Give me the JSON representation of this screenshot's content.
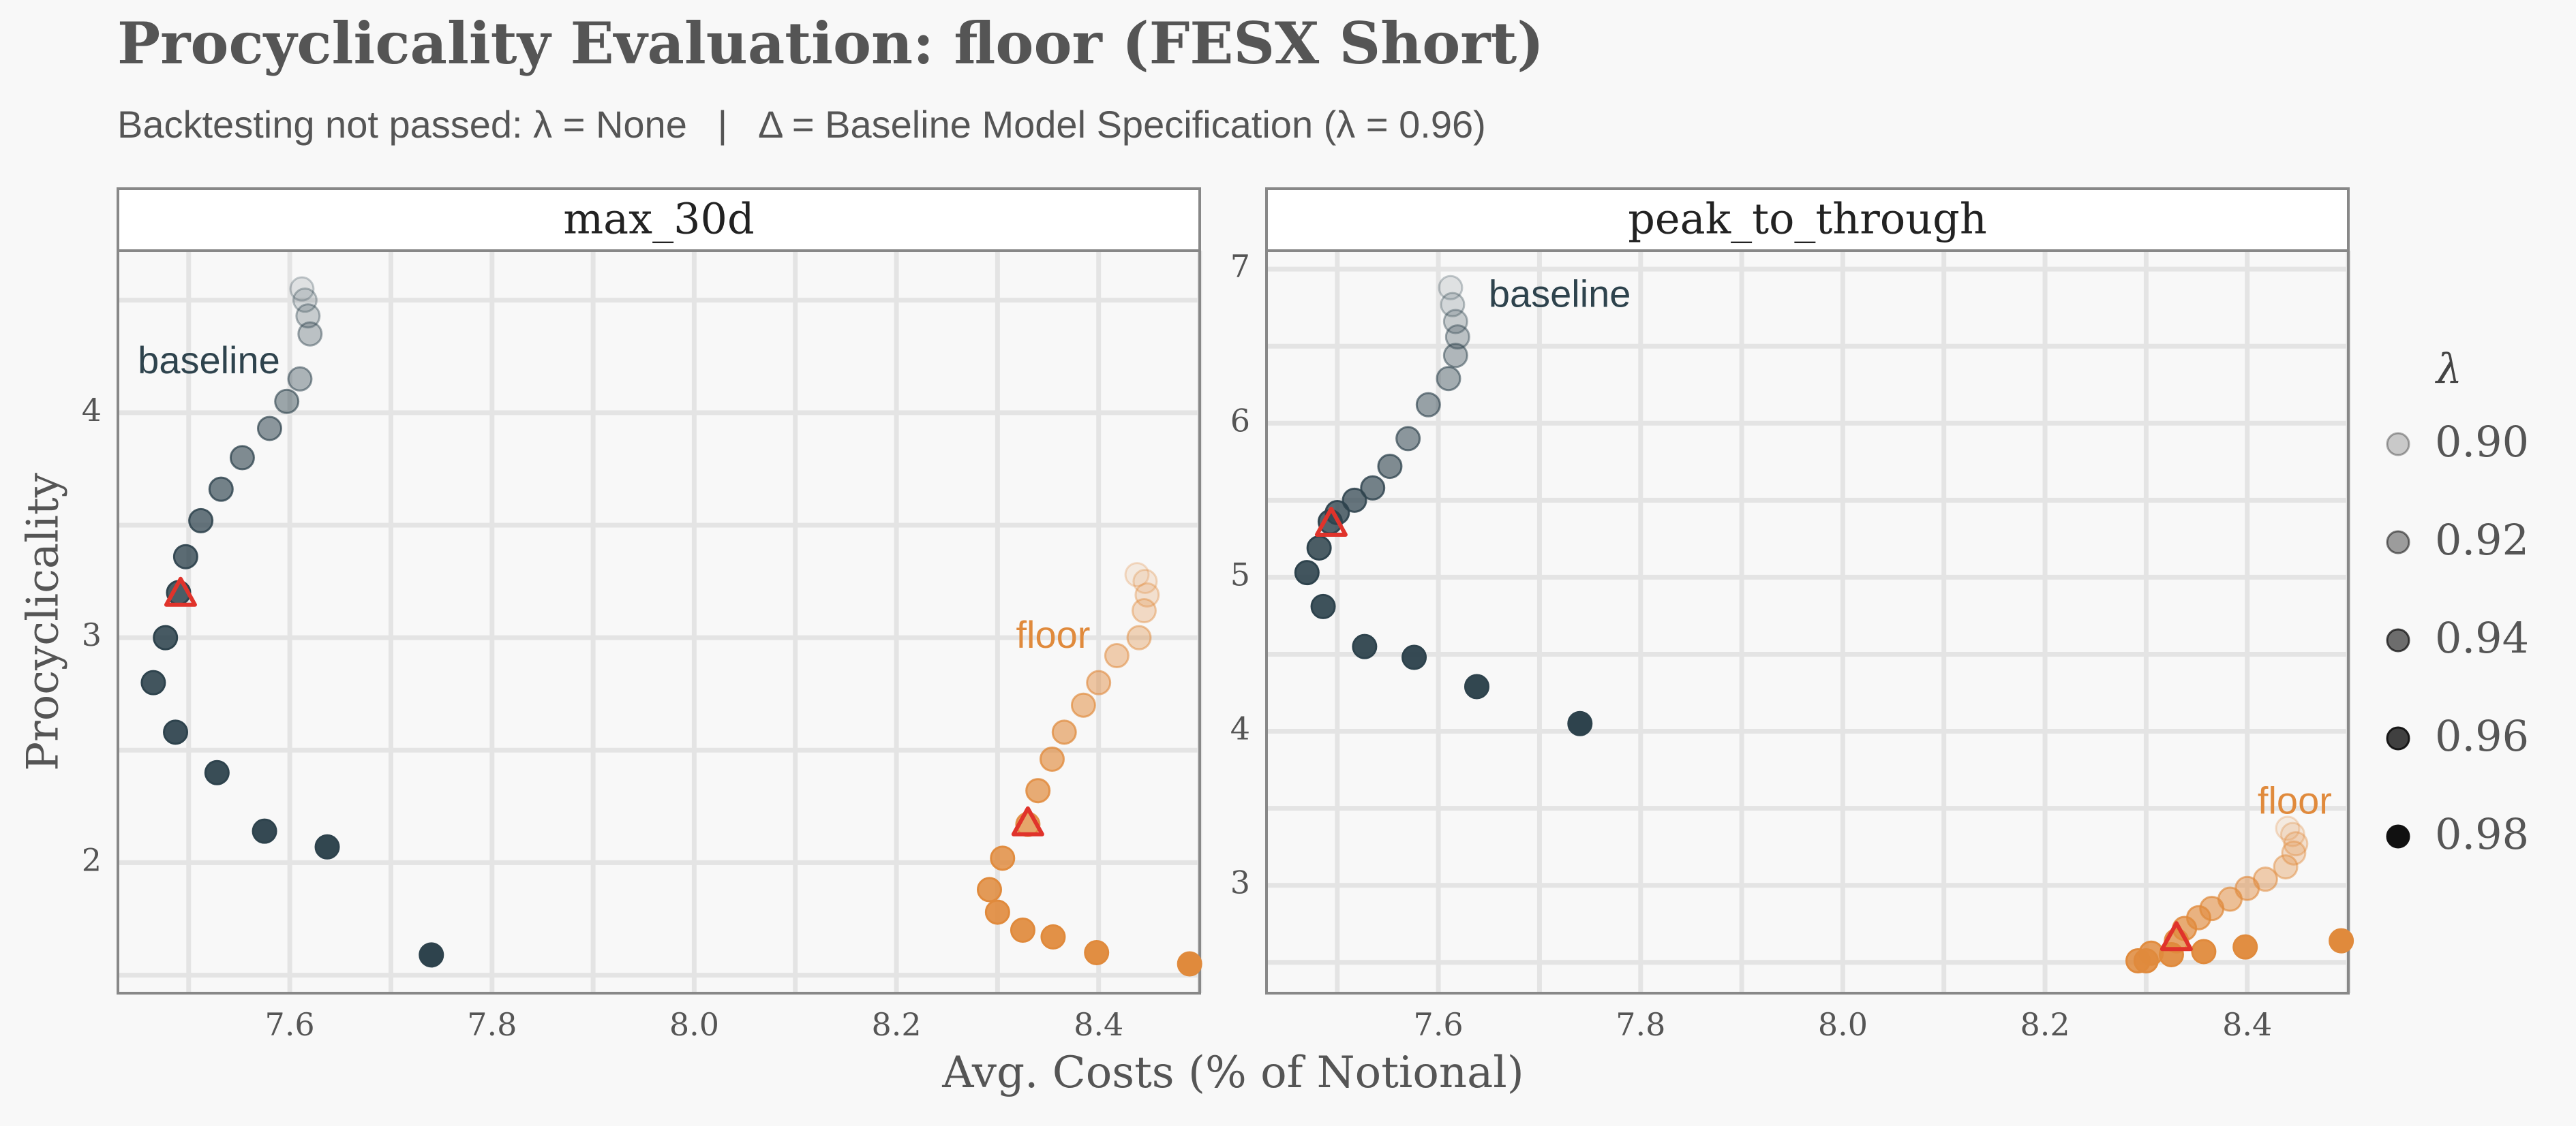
{
  "chart_data": {
    "title": "Procyclicality Evaluation: floor (FESX Short)",
    "subtitle_left": "Backtesting not passed: λ = None",
    "subtitle_sep": "|",
    "subtitle_right": "Δ = Baseline Model Specification (λ = 0.96)",
    "xlabel": "Avg. Costs (% of Notional)",
    "ylabel": "Procyclicality",
    "type": "scatter",
    "colors": {
      "baseline": "#2e434d",
      "floor": "#e08a3c",
      "triangle": "#e0332b"
    },
    "legend": {
      "title": "λ",
      "items": [
        {
          "label": "0.90",
          "opacity": 0.2
        },
        {
          "label": "0.92",
          "opacity": 0.4
        },
        {
          "label": "0.94",
          "opacity": 0.6
        },
        {
          "label": "0.96",
          "opacity": 0.8
        },
        {
          "label": "0.98",
          "opacity": 1.0
        }
      ],
      "placement": "right"
    },
    "panels": [
      {
        "strip": "max_30d",
        "xlim": [
          7.43,
          8.5
        ],
        "ylim": [
          1.42,
          4.72
        ],
        "xticks": [
          "7.6",
          "7.8",
          "8.0",
          "8.2",
          "8.4"
        ],
        "yticks": [
          "2",
          "3",
          "4"
        ],
        "series": [
          {
            "name": "baseline",
            "label": "baseline",
            "label_at": [
              7.52,
              4.22
            ],
            "points": [
              [
                7.612,
                4.55,
                0.12
              ],
              [
                7.615,
                4.5,
                0.18
              ],
              [
                7.618,
                4.43,
                0.24
              ],
              [
                7.62,
                4.35,
                0.3
              ],
              [
                7.61,
                4.15,
                0.38
              ],
              [
                7.597,
                4.05,
                0.46
              ],
              [
                7.58,
                3.93,
                0.54
              ],
              [
                7.553,
                3.8,
                0.6
              ],
              [
                7.532,
                3.66,
                0.66
              ],
              [
                7.512,
                3.52,
                0.72
              ],
              [
                7.497,
                3.36,
                0.78
              ],
              [
                7.49,
                3.2,
                0.86
              ],
              [
                7.477,
                3.0,
                0.88
              ],
              [
                7.465,
                2.8,
                0.9
              ],
              [
                7.487,
                2.58,
                0.93
              ],
              [
                7.528,
                2.4,
                0.95
              ],
              [
                7.575,
                2.14,
                0.97
              ],
              [
                7.637,
                2.07,
                0.98
              ],
              [
                7.74,
                1.59,
                1.0
              ]
            ],
            "triangle": [
              7.492,
              3.19
            ]
          },
          {
            "name": "floor",
            "label": "floor",
            "label_at": [
              8.355,
              3.0
            ],
            "points": [
              [
                8.438,
                3.28,
                0.12
              ],
              [
                8.446,
                3.25,
                0.16
              ],
              [
                8.448,
                3.19,
                0.22
              ],
              [
                8.445,
                3.12,
                0.28
              ],
              [
                8.44,
                3.0,
                0.34
              ],
              [
                8.418,
                2.92,
                0.4
              ],
              [
                8.4,
                2.8,
                0.46
              ],
              [
                8.385,
                2.7,
                0.52
              ],
              [
                8.366,
                2.58,
                0.58
              ],
              [
                8.354,
                2.46,
                0.64
              ],
              [
                8.34,
                2.32,
                0.7
              ],
              [
                8.33,
                2.17,
                0.76
              ],
              [
                8.305,
                2.02,
                0.82
              ],
              [
                8.292,
                1.88,
                0.86
              ],
              [
                8.3,
                1.78,
                0.9
              ],
              [
                8.325,
                1.7,
                0.92
              ],
              [
                8.355,
                1.67,
                0.94
              ],
              [
                8.398,
                1.6,
                0.97
              ],
              [
                8.49,
                1.55,
                1.0
              ]
            ],
            "triangle": [
              8.33,
              2.17
            ]
          }
        ]
      },
      {
        "strip": "peak_to_through",
        "xlim": [
          7.43,
          8.5
        ],
        "ylim": [
          2.3,
          7.12
        ],
        "xticks": [
          "7.6",
          "7.8",
          "8.0",
          "8.2",
          "8.4"
        ],
        "yticks": [
          "3",
          "4",
          "5",
          "6",
          "7"
        ],
        "series": [
          {
            "name": "baseline",
            "label": "baseline",
            "label_at": [
              7.72,
              6.82
            ],
            "points": [
              [
                7.612,
                6.88,
                0.12
              ],
              [
                7.614,
                6.77,
                0.18
              ],
              [
                7.617,
                6.66,
                0.24
              ],
              [
                7.619,
                6.56,
                0.3
              ],
              [
                7.617,
                6.44,
                0.36
              ],
              [
                7.61,
                6.29,
                0.42
              ],
              [
                7.59,
                6.12,
                0.48
              ],
              [
                7.57,
                5.9,
                0.54
              ],
              [
                7.552,
                5.72,
                0.6
              ],
              [
                7.535,
                5.58,
                0.66
              ],
              [
                7.517,
                5.5,
                0.72
              ],
              [
                7.5,
                5.42,
                0.78
              ],
              [
                7.493,
                5.36,
                0.82
              ],
              [
                7.482,
                5.19,
                0.86
              ],
              [
                7.47,
                5.03,
                0.9
              ],
              [
                7.486,
                4.81,
                0.92
              ],
              [
                7.527,
                4.55,
                0.94
              ],
              [
                7.576,
                4.48,
                0.96
              ],
              [
                7.638,
                4.29,
                0.98
              ],
              [
                7.74,
                4.05,
                1.0
              ]
            ],
            "triangle": [
              7.494,
              5.34
            ]
          },
          {
            "name": "floor",
            "label": "floor",
            "label_at": [
              8.447,
              3.53
            ],
            "points": [
              [
                8.44,
                3.37,
                0.12
              ],
              [
                8.445,
                3.33,
                0.16
              ],
              [
                8.448,
                3.27,
                0.22
              ],
              [
                8.446,
                3.21,
                0.28
              ],
              [
                8.438,
                3.12,
                0.34
              ],
              [
                8.418,
                3.04,
                0.4
              ],
              [
                8.4,
                2.98,
                0.46
              ],
              [
                8.383,
                2.91,
                0.52
              ],
              [
                8.365,
                2.85,
                0.58
              ],
              [
                8.352,
                2.79,
                0.64
              ],
              [
                8.338,
                2.72,
                0.7
              ],
              [
                8.33,
                2.64,
                0.76
              ],
              [
                8.305,
                2.56,
                0.82
              ],
              [
                8.292,
                2.51,
                0.86
              ],
              [
                8.3,
                2.51,
                0.9
              ],
              [
                8.325,
                2.55,
                0.92
              ],
              [
                8.357,
                2.57,
                0.94
              ],
              [
                8.398,
                2.6,
                0.97
              ],
              [
                8.493,
                2.64,
                1.0
              ]
            ],
            "triangle": [
              8.33,
              2.65
            ]
          }
        ]
      }
    ]
  }
}
